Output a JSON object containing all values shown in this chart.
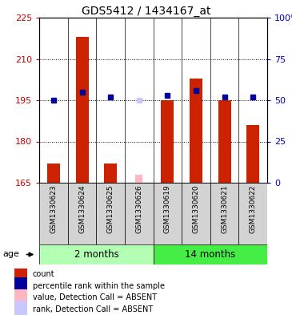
{
  "title": "GDS5412 / 1434167_at",
  "samples": [
    "GSM1330623",
    "GSM1330624",
    "GSM1330625",
    "GSM1330626",
    "GSM1330619",
    "GSM1330620",
    "GSM1330621",
    "GSM1330622"
  ],
  "count_values": [
    172,
    218,
    172,
    null,
    195,
    203,
    195,
    186
  ],
  "rank_values": [
    50,
    55,
    52,
    null,
    53,
    56,
    52,
    52
  ],
  "absent_count": [
    null,
    null,
    null,
    168,
    null,
    null,
    null,
    null
  ],
  "absent_rank": [
    null,
    null,
    null,
    50,
    null,
    null,
    null,
    null
  ],
  "ylim_left": [
    165,
    225
  ],
  "ylim_right": [
    0,
    100
  ],
  "yticks_left": [
    165,
    180,
    195,
    210,
    225
  ],
  "yticks_right": [
    0,
    25,
    50,
    75,
    100
  ],
  "left_tick_color": "#cc0000",
  "right_tick_color": "#0000cc",
  "bar_color": "#cc2200",
  "rank_color": "#000099",
  "absent_bar_color": "#ffb6c1",
  "absent_rank_color": "#c8c8ff",
  "group1_color": "#b3ffb3",
  "group2_color": "#44ee44",
  "bar_width": 0.45,
  "legend_items": [
    {
      "label": "count",
      "color": "#cc2200"
    },
    {
      "label": "percentile rank within the sample",
      "color": "#000099"
    },
    {
      "label": "value, Detection Call = ABSENT",
      "color": "#ffb6c1"
    },
    {
      "label": "rank, Detection Call = ABSENT",
      "color": "#c8c8ff"
    }
  ]
}
